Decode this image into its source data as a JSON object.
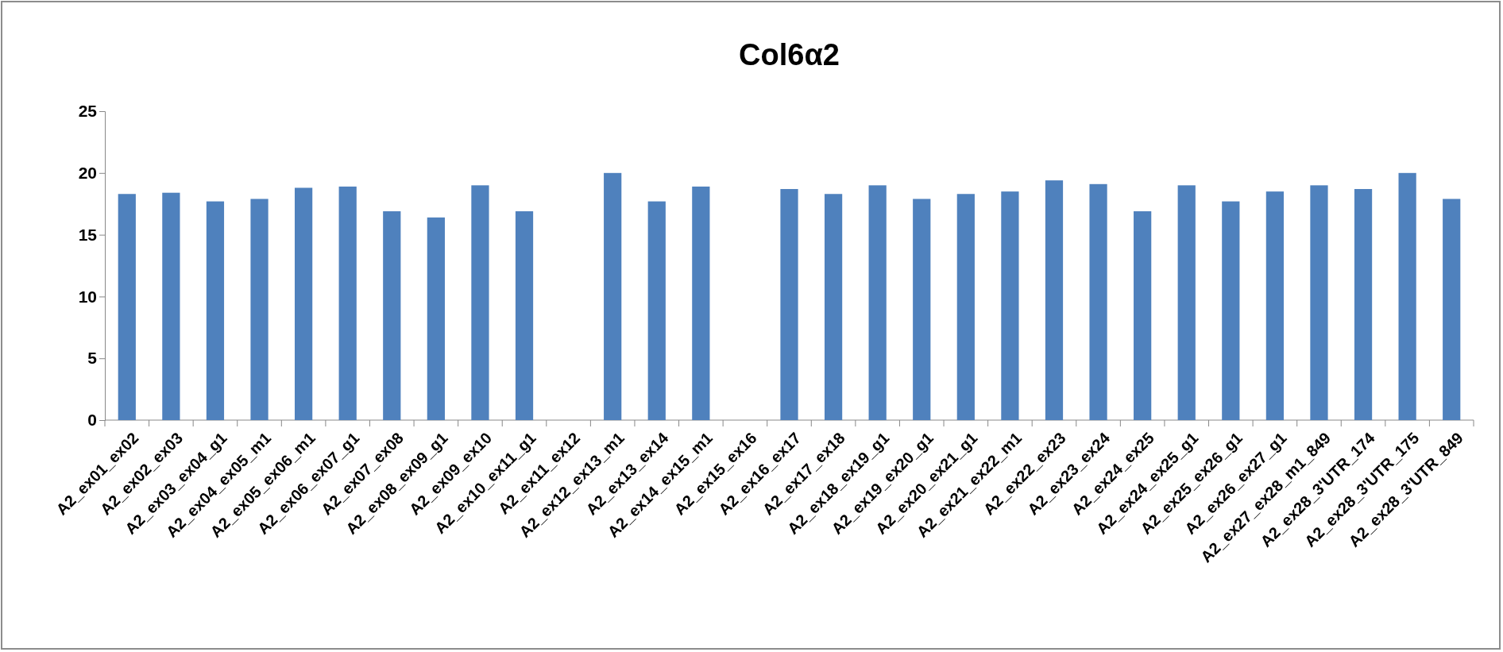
{
  "chart_data": {
    "type": "bar",
    "title": "Col6α2",
    "categories": [
      "A2_ex01_ex02",
      "A2_ex02_ex03",
      "A2_ex03_ex04_g1",
      "A2_ex04_ex05_m1",
      "A2_ex05_ex06_m1",
      "A2_ex06_ex07_g1",
      "A2_ex07_ex08",
      "A2_ex08_ex09_g1",
      "A2_ex09_ex10",
      "A2_ex10_ex11_g1",
      "A2_ex11_ex12",
      "A2_ex12_ex13_m1",
      "A2_ex13_ex14",
      "A2_ex14_ex15_m1",
      "A2_ex15_ex16",
      "A2_ex16_ex17",
      "A2_ex17_ex18",
      "A2_ex18_ex19_g1",
      "A2_ex19_ex20_g1",
      "A2_ex20_ex21_g1",
      "A2_ex21_ex22_m1",
      "A2_ex22_ex23",
      "A2_ex23_ex24",
      "A2_ex24_ex25",
      "A2_ex24_ex25_g1",
      "A2_ex25_ex26_g1",
      "A2_ex26_ex27_g1",
      "A2_ex27_ex28_m1_849",
      "A2_ex28_3'UTR_174",
      "A2_ex28_3'UTR_175",
      "A2_ex28_3'UTR_849"
    ],
    "values": [
      18.3,
      18.4,
      17.7,
      17.9,
      18.8,
      18.9,
      16.9,
      16.4,
      19.0,
      16.9,
      null,
      20.0,
      17.7,
      18.9,
      null,
      18.7,
      18.3,
      19.0,
      17.9,
      18.3,
      18.5,
      19.4,
      19.1,
      16.9,
      19.0,
      17.7,
      18.5,
      19.0,
      18.7,
      20.0,
      17.9
    ],
    "color": "#4f81bd",
    "ylim": [
      0,
      25
    ],
    "yticks": [
      0,
      5,
      10,
      15,
      20,
      25
    ]
  }
}
